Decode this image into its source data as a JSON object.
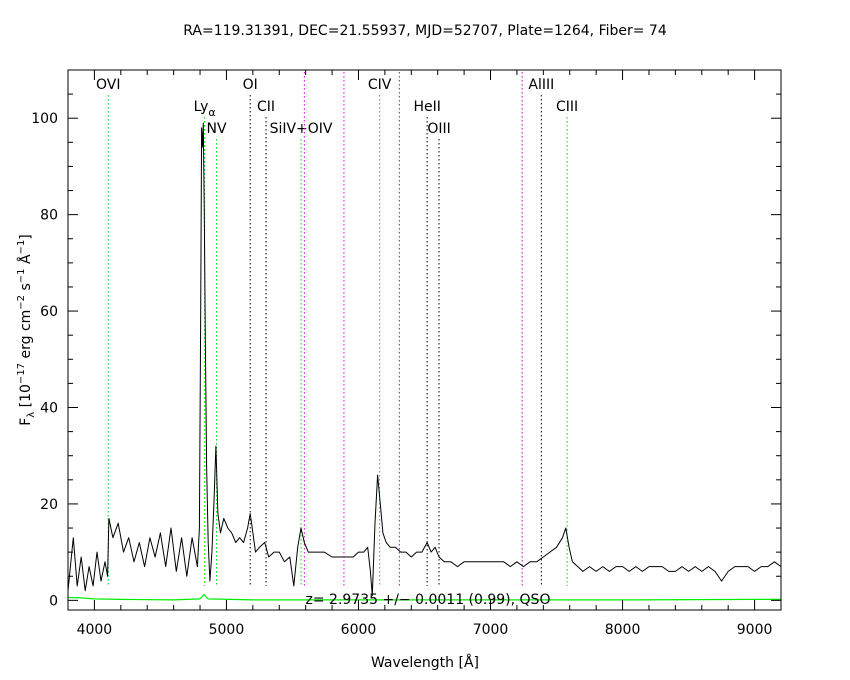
{
  "chart_data": {
    "type": "line",
    "title": "RA=119.31391, DEC=21.55937, MJD=52707, Plate=1264, Fiber= 74",
    "xlabel": "Wavelength [Å]",
    "ylabel": {
      "main": "F",
      "sub": "λ",
      "units_open": " [10",
      "exp1": "−17",
      "units_mid": " erg cm",
      "exp2": "−2",
      "units_s": " s",
      "exp3": "−1",
      "units_A": " Å",
      "exp4": "−1",
      "units_close": "]"
    },
    "xlim": [
      3800,
      9200
    ],
    "ylim": [
      -2,
      110
    ],
    "xticks": [
      4000,
      5000,
      6000,
      7000,
      8000,
      9000
    ],
    "yticks": [
      0,
      20,
      40,
      60,
      80,
      100
    ],
    "annotation": "z= 2.9735 +/− 0.0011 (0.99), QSO",
    "colors": {
      "spectrum": "#000000",
      "error": "#00ee00",
      "green_line": "#00dd00",
      "magenta_line": "#dd00dd",
      "black_line": "#000000"
    },
    "lines": [
      {
        "label": "OVI",
        "x": 4105,
        "color": "green",
        "row": 1
      },
      {
        "label": "Ly",
        "sub": "α",
        "x": 4835,
        "color": "green",
        "row": 2
      },
      {
        "label": "NV",
        "x": 4925,
        "color": "green",
        "row": 3
      },
      {
        "label": "OI",
        "x": 5180,
        "color": "black",
        "row": 1
      },
      {
        "label": "CII",
        "x": 5300,
        "color": "black",
        "row": 2
      },
      {
        "label": "SiIV+OIV",
        "x": 5565,
        "color": "green",
        "row": 3
      },
      {
        "label": "",
        "x": 5590,
        "color": "magenta",
        "row": 0
      },
      {
        "label": "",
        "x": 5890,
        "color": "magenta",
        "row": 0
      },
      {
        "label": "CIV",
        "x": 6160,
        "color": "green",
        "row": 1
      },
      {
        "label": "",
        "x": 6310,
        "color": "magenta",
        "row": 0
      },
      {
        "label": "HeII",
        "x": 6520,
        "color": "black",
        "row": 2
      },
      {
        "label": "OIII",
        "x": 6610,
        "color": "black",
        "row": 3
      },
      {
        "label": "",
        "x": 7240,
        "color": "magenta",
        "row": 0
      },
      {
        "label": "AlIII",
        "x": 7385,
        "color": "black",
        "row": 1
      },
      {
        "label": "CIII",
        "x": 7580,
        "color": "green",
        "row": 2
      }
    ],
    "spectrum": [
      [
        3800,
        2
      ],
      [
        3840,
        13
      ],
      [
        3870,
        3
      ],
      [
        3900,
        9
      ],
      [
        3930,
        2
      ],
      [
        3960,
        7
      ],
      [
        3990,
        3
      ],
      [
        4020,
        10
      ],
      [
        4050,
        4
      ],
      [
        4080,
        8
      ],
      [
        4100,
        5
      ],
      [
        4110,
        17
      ],
      [
        4140,
        13
      ],
      [
        4180,
        16
      ],
      [
        4220,
        10
      ],
      [
        4260,
        13
      ],
      [
        4300,
        8
      ],
      [
        4340,
        12
      ],
      [
        4380,
        7
      ],
      [
        4420,
        13
      ],
      [
        4460,
        9
      ],
      [
        4500,
        14
      ],
      [
        4540,
        7
      ],
      [
        4580,
        15
      ],
      [
        4620,
        6
      ],
      [
        4660,
        13
      ],
      [
        4700,
        5
      ],
      [
        4740,
        13
      ],
      [
        4780,
        7
      ],
      [
        4795,
        15
      ],
      [
        4805,
        60
      ],
      [
        4812,
        98
      ],
      [
        4818,
        94
      ],
      [
        4825,
        99
      ],
      [
        4832,
        80
      ],
      [
        4840,
        55
      ],
      [
        4850,
        28
      ],
      [
        4862,
        12
      ],
      [
        4875,
        4
      ],
      [
        4890,
        10
      ],
      [
        4905,
        20
      ],
      [
        4920,
        32
      ],
      [
        4935,
        18
      ],
      [
        4955,
        14
      ],
      [
        4980,
        17
      ],
      [
        5010,
        15
      ],
      [
        5040,
        14
      ],
      [
        5070,
        12
      ],
      [
        5100,
        13
      ],
      [
        5130,
        12
      ],
      [
        5160,
        15
      ],
      [
        5180,
        18
      ],
      [
        5200,
        14
      ],
      [
        5220,
        10
      ],
      [
        5250,
        11
      ],
      [
        5290,
        12
      ],
      [
        5320,
        9
      ],
      [
        5360,
        10
      ],
      [
        5400,
        10
      ],
      [
        5440,
        8
      ],
      [
        5480,
        9
      ],
      [
        5510,
        3
      ],
      [
        5540,
        11
      ],
      [
        5565,
        15
      ],
      [
        5590,
        12
      ],
      [
        5620,
        10
      ],
      [
        5680,
        10
      ],
      [
        5740,
        10
      ],
      [
        5800,
        9
      ],
      [
        5860,
        9
      ],
      [
        5920,
        9
      ],
      [
        5960,
        9
      ],
      [
        6000,
        10
      ],
      [
        6040,
        10
      ],
      [
        6070,
        11
      ],
      [
        6090,
        6
      ],
      [
        6105,
        1
      ],
      [
        6125,
        16
      ],
      [
        6145,
        26
      ],
      [
        6165,
        20
      ],
      [
        6185,
        14
      ],
      [
        6210,
        12
      ],
      [
        6240,
        11
      ],
      [
        6280,
        11
      ],
      [
        6320,
        10
      ],
      [
        6360,
        10
      ],
      [
        6400,
        9
      ],
      [
        6440,
        10
      ],
      [
        6480,
        10
      ],
      [
        6520,
        12
      ],
      [
        6550,
        10
      ],
      [
        6580,
        11
      ],
      [
        6610,
        9
      ],
      [
        6650,
        8
      ],
      [
        6700,
        8
      ],
      [
        6750,
        7
      ],
      [
        6800,
        8
      ],
      [
        6850,
        8
      ],
      [
        6900,
        8
      ],
      [
        6950,
        8
      ],
      [
        7000,
        8
      ],
      [
        7050,
        8
      ],
      [
        7100,
        8
      ],
      [
        7150,
        7
      ],
      [
        7200,
        8
      ],
      [
        7250,
        7
      ],
      [
        7300,
        8
      ],
      [
        7350,
        8
      ],
      [
        7400,
        9
      ],
      [
        7450,
        10
      ],
      [
        7500,
        11
      ],
      [
        7545,
        13
      ],
      [
        7570,
        15
      ],
      [
        7595,
        11
      ],
      [
        7620,
        8
      ],
      [
        7660,
        7
      ],
      [
        7700,
        6
      ],
      [
        7750,
        7
      ],
      [
        7800,
        6
      ],
      [
        7850,
        7
      ],
      [
        7900,
        6
      ],
      [
        7950,
        7
      ],
      [
        8000,
        7
      ],
      [
        8050,
        6
      ],
      [
        8100,
        7
      ],
      [
        8150,
        6
      ],
      [
        8200,
        7
      ],
      [
        8250,
        7
      ],
      [
        8300,
        7
      ],
      [
        8350,
        6
      ],
      [
        8400,
        6
      ],
      [
        8450,
        7
      ],
      [
        8500,
        6
      ],
      [
        8550,
        7
      ],
      [
        8600,
        6
      ],
      [
        8650,
        7
      ],
      [
        8700,
        6
      ],
      [
        8750,
        4
      ],
      [
        8800,
        6
      ],
      [
        8850,
        7
      ],
      [
        8900,
        7
      ],
      [
        8950,
        7
      ],
      [
        9000,
        6
      ],
      [
        9050,
        7
      ],
      [
        9100,
        7
      ],
      [
        9150,
        8
      ],
      [
        9200,
        7
      ]
    ],
    "error": [
      [
        3800,
        0.6
      ],
      [
        3900,
        0.5
      ],
      [
        4000,
        0.3
      ],
      [
        4200,
        0.2
      ],
      [
        4600,
        0.1
      ],
      [
        4800,
        0.3
      ],
      [
        4830,
        1.2
      ],
      [
        4860,
        0.3
      ],
      [
        5200,
        0.1
      ],
      [
        6000,
        0.1
      ],
      [
        7000,
        0.1
      ],
      [
        8000,
        0.1
      ],
      [
        9000,
        0.2
      ],
      [
        9200,
        0.2
      ]
    ]
  }
}
